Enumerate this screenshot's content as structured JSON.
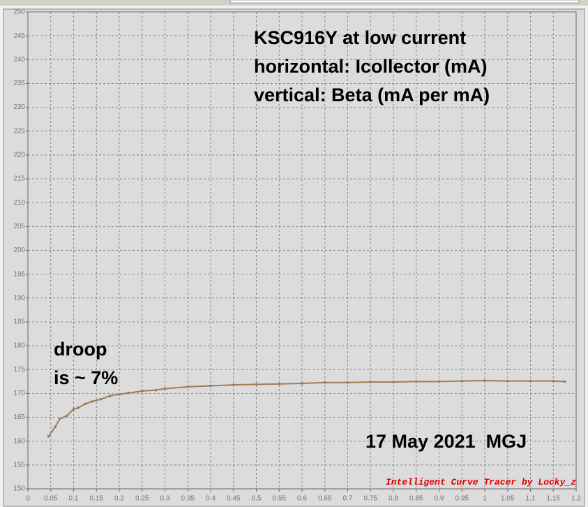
{
  "chart_data": {
    "type": "line",
    "title_lines": [
      "KSC916Y at low current",
      "horizontal: Icollector (mA)",
      "vertical: Beta (mA per mA)"
    ],
    "annotations": [
      "droop",
      "is ~ 7%",
      "17 May 2021  MGJ",
      "Intelligent Curve Tracer by Locky_z"
    ],
    "x": [
      0.045,
      0.06,
      0.07,
      0.085,
      0.1,
      0.11,
      0.125,
      0.14,
      0.16,
      0.18,
      0.2,
      0.22,
      0.25,
      0.28,
      0.3,
      0.35,
      0.4,
      0.45,
      0.5,
      0.55,
      0.6,
      0.65,
      0.7,
      0.75,
      0.8,
      0.85,
      0.9,
      0.95,
      1.0,
      1.05,
      1.1,
      1.15,
      1.175
    ],
    "series": [
      {
        "color": "#a87a4e",
        "values": [
          161,
          163,
          164.7,
          165.3,
          166.7,
          167,
          167.8,
          168.3,
          168.8,
          169.5,
          169.8,
          170.1,
          170.5,
          170.7,
          171,
          171.4,
          171.6,
          171.8,
          171.9,
          172,
          172.1,
          172.3,
          172.3,
          172.4,
          172.4,
          172.5,
          172.5,
          172.6,
          172.7,
          172.6,
          172.6,
          172.6,
          172.5
        ]
      }
    ],
    "xlim": [
      0,
      1.2
    ],
    "ylim": [
      150,
      250
    ],
    "xticks": [
      0,
      0.05,
      0.1,
      0.15,
      0.2,
      0.25,
      0.3,
      0.35,
      0.4,
      0.45,
      0.5,
      0.55,
      0.6,
      0.65,
      0.7,
      0.75,
      0.8,
      0.85,
      0.9,
      0.95,
      1,
      1.05,
      1.1,
      1.15,
      1.2
    ],
    "yticks": [
      150,
      155,
      160,
      165,
      170,
      175,
      180,
      185,
      190,
      195,
      200,
      205,
      210,
      215,
      220,
      225,
      230,
      235,
      240,
      245,
      250
    ],
    "grid": true
  }
}
